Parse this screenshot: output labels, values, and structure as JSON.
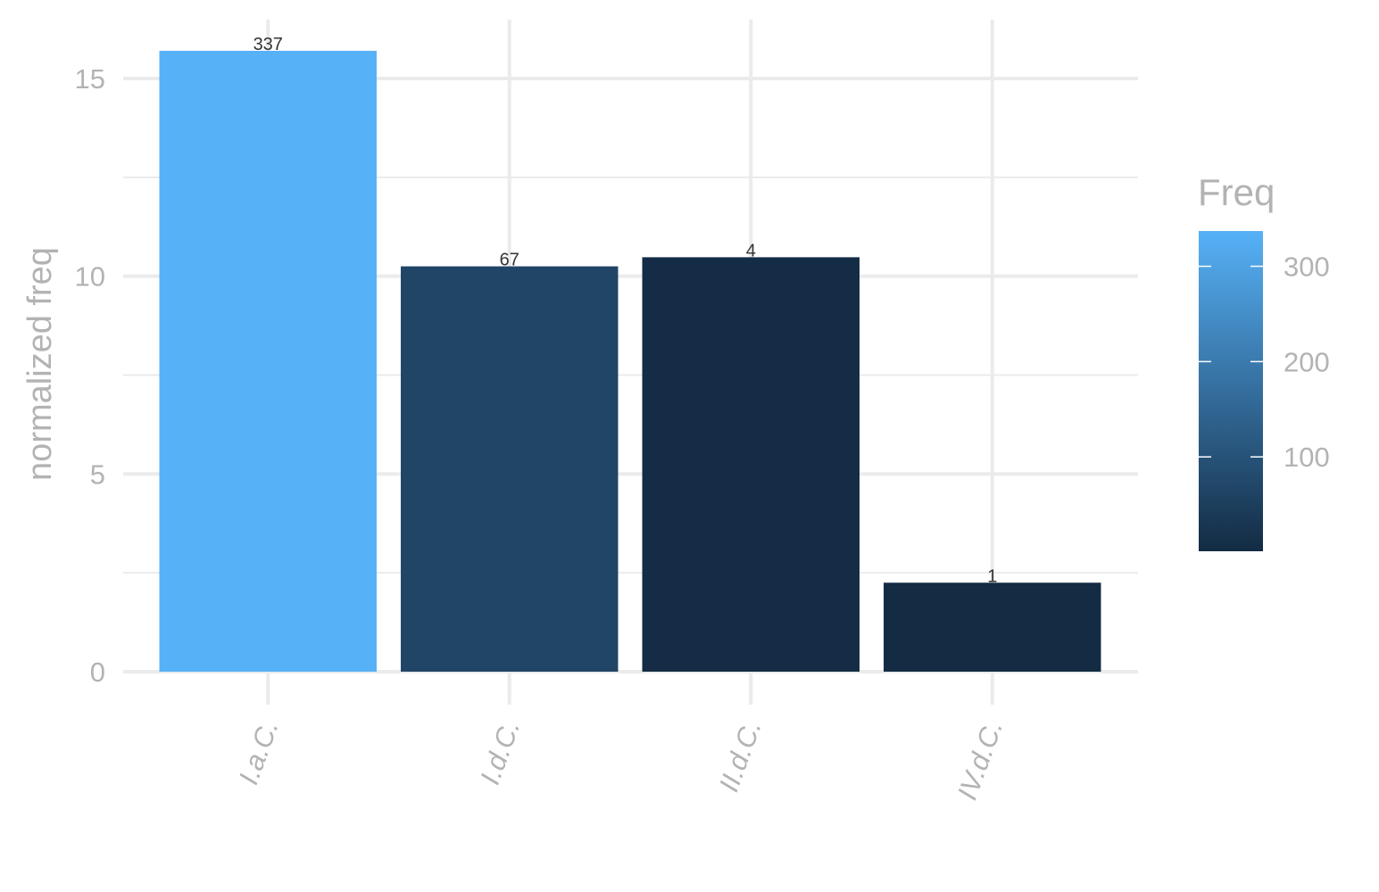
{
  "chart_data": {
    "type": "bar",
    "categories": [
      "I.a.C.",
      "I.d.C.",
      "II.d.C.",
      "IV.d.C."
    ],
    "values": [
      15.7,
      10.25,
      10.48,
      2.25
    ],
    "freq": [
      337,
      67,
      4,
      1
    ],
    "data_labels": [
      "337",
      "67",
      "4",
      "1"
    ],
    "title": "",
    "xlabel": "",
    "ylabel": "normalized freq",
    "ylim": [
      0,
      16.7
    ],
    "y_ticks": [
      0,
      5,
      10,
      15
    ],
    "grid": true,
    "legend": {
      "title": "Freq",
      "position": "right",
      "type": "colorbar",
      "range": [
        1,
        337
      ],
      "ticks": [
        100,
        200,
        300
      ],
      "tick_labels": [
        "100",
        "200",
        "300"
      ],
      "color_low": "#132B43",
      "color_high": "#56B1F7"
    }
  }
}
